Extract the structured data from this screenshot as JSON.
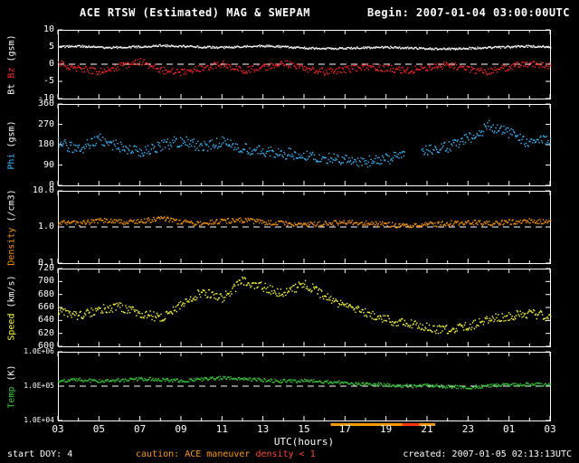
{
  "header": {
    "title": "ACE RTSW (Estimated) MAG & SWEPAM",
    "begin": "Begin: 2007-01-04 03:00:00UTC"
  },
  "footer": {
    "start_doy": "start DOY:  4",
    "caution_label": "caution:",
    "caution_maneuver": "ACE maneuver",
    "caution_density": "density < 1",
    "created": "created: 2007-01-05 02:13:13UTC"
  },
  "x_axis": {
    "label": "UTC(hours)",
    "start_hour": 3,
    "end_hour": 27,
    "tick_labels": [
      "03",
      "05",
      "07",
      "09",
      "11",
      "13",
      "15",
      "17",
      "19",
      "21",
      "23",
      "01",
      "03"
    ],
    "anchor_hours": [
      3,
      4,
      5,
      6,
      7,
      8,
      9,
      10,
      11,
      12,
      13,
      14,
      15,
      16,
      17,
      18,
      19,
      20,
      21,
      22,
      23,
      24,
      25,
      26,
      27
    ]
  },
  "caution_bar": {
    "from_hour": 16.3,
    "to_hour": 21.4,
    "color": "#ff9900",
    "segments": [
      {
        "from_hour": 19.8,
        "to_hour": 20.6,
        "color": "#ff3311"
      }
    ]
  },
  "colors": {
    "background": "#000000",
    "frame": "#ffffff",
    "text": "#ffffff",
    "bt": "#ffffff",
    "bz": "#ff2020",
    "phi": "#33bbff",
    "density": "#ff9900",
    "speed": "#ffff33",
    "temp": "#33cc33",
    "caution": "#ff9900",
    "caution_red": "#ff4433"
  },
  "chart_data": [
    {
      "type": "scatter",
      "name": "bt-bz",
      "ylabel": "Bt Bz (gsm)",
      "scale": "linear",
      "ylim": [
        -10,
        10
      ],
      "dashed_at": 0,
      "yticks": [
        {
          "v": 10,
          "t": "10"
        },
        {
          "v": 5,
          "t": "5"
        },
        {
          "v": 0,
          "t": "0"
        },
        {
          "v": -5,
          "t": "-5"
        },
        {
          "v": -10,
          "t": "-10"
        }
      ],
      "label_parts": [
        {
          "text": "Bt",
          "color": "#ffffff"
        },
        {
          "text": "Bz",
          "color": "#ff2020"
        },
        {
          "text": "(gsm)",
          "color": "#ffffff"
        }
      ],
      "series": [
        {
          "name": "Bt",
          "color": "#ffffff",
          "jitter": 0.3,
          "values": [
            5.2,
            5.4,
            5.1,
            5.0,
            5.3,
            5.6,
            5.4,
            5.2,
            5.0,
            5.3,
            5.5,
            5.2,
            4.9,
            4.7,
            4.8,
            5.0,
            5.1,
            4.9,
            4.7,
            4.6,
            4.8,
            5.0,
            5.2,
            5.4,
            5.2
          ]
        },
        {
          "name": "Bz",
          "color": "#ff2020",
          "jitter": 1.0,
          "values": [
            0.5,
            -1.2,
            -2.0,
            -0.5,
            1.0,
            -1.5,
            -2.2,
            -1.0,
            0.2,
            -1.8,
            -0.8,
            0.5,
            -1.2,
            -2.0,
            -1.4,
            -0.6,
            -1.0,
            -1.8,
            -0.9,
            0.1,
            -1.4,
            -2.0,
            -0.6,
            0.4,
            -0.2
          ]
        }
      ]
    },
    {
      "type": "scatter",
      "name": "phi",
      "ylabel": "Phi (gsm)",
      "scale": "linear",
      "ylim": [
        0,
        360
      ],
      "yticks": [
        {
          "v": 360,
          "t": "360"
        },
        {
          "v": 270,
          "t": "270"
        },
        {
          "v": 180,
          "t": "180"
        },
        {
          "v": 90,
          "t": "90"
        },
        {
          "v": 0,
          "t": "0"
        }
      ],
      "label_parts": [
        {
          "text": "Phi",
          "color": "#33bbff"
        },
        {
          "text": "(gsm)",
          "color": "#ffffff"
        }
      ],
      "series": [
        {
          "name": "Phi",
          "color": "#33bbff",
          "jitter": 25,
          "gaps": [
            [
              19.9,
              20.7
            ]
          ],
          "values": [
            190,
            160,
            210,
            170,
            150,
            180,
            200,
            175,
            195,
            165,
            155,
            145,
            135,
            125,
            115,
            108,
            118,
            135,
            155,
            175,
            210,
            265,
            235,
            185,
            205
          ]
        }
      ]
    },
    {
      "type": "scatter",
      "name": "density",
      "ylabel": "Density (/cm3)",
      "scale": "log",
      "ylim": [
        0.1,
        10
      ],
      "dashed_at": 1,
      "yticks": [
        {
          "v": 10,
          "t": "10.0"
        },
        {
          "v": 1,
          "t": "1.0"
        },
        {
          "v": 0.1,
          "t": "0.1"
        }
      ],
      "label_parts": [
        {
          "text": "Density",
          "color": "#ff9900"
        },
        {
          "text": "(/cm3)",
          "color": "#ffffff"
        }
      ],
      "series": [
        {
          "name": "Density",
          "color": "#ff9900",
          "jitter": 0.07,
          "values": [
            1.4,
            1.3,
            1.6,
            1.4,
            1.5,
            1.8,
            1.4,
            1.3,
            1.5,
            1.6,
            1.4,
            1.3,
            1.2,
            1.3,
            1.4,
            1.3,
            1.2,
            1.1,
            1.2,
            1.3,
            1.4,
            1.3,
            1.4,
            1.5,
            1.4
          ]
        }
      ]
    },
    {
      "type": "scatter",
      "name": "speed",
      "ylabel": "Speed (km/s)",
      "scale": "linear",
      "ylim": [
        600,
        720
      ],
      "yticks": [
        {
          "v": 720,
          "t": "720"
        },
        {
          "v": 700,
          "t": "700"
        },
        {
          "v": 680,
          "t": "680"
        },
        {
          "v": 660,
          "t": "660"
        },
        {
          "v": 640,
          "t": "640"
        },
        {
          "v": 620,
          "t": "620"
        },
        {
          "v": 600,
          "t": "600"
        }
      ],
      "label_parts": [
        {
          "text": "Speed",
          "color": "#ffff33"
        },
        {
          "text": "(km/s)",
          "color": "#ffffff"
        }
      ],
      "series": [
        {
          "name": "Speed",
          "color": "#ffff33",
          "jitter": 7,
          "values": [
            655,
            648,
            658,
            662,
            652,
            645,
            665,
            685,
            675,
            702,
            692,
            682,
            698,
            678,
            662,
            652,
            642,
            636,
            630,
            626,
            632,
            642,
            648,
            652,
            646
          ]
        }
      ]
    },
    {
      "type": "scatter",
      "name": "temp",
      "ylabel": "Temp (K)",
      "scale": "log",
      "ylim": [
        10000,
        1000000
      ],
      "dashed_at": 100000,
      "tick_font": 8,
      "yticks": [
        {
          "v": 1000000,
          "t": "1.0E+06"
        },
        {
          "v": 100000,
          "t": "1.0E+05"
        },
        {
          "v": 10000,
          "t": "1.0E+04"
        }
      ],
      "label_parts": [
        {
          "text": "Temp",
          "color": "#33cc33"
        },
        {
          "text": "(K)",
          "color": "#ffffff"
        }
      ],
      "series": [
        {
          "name": "Temp",
          "color": "#33cc33",
          "jitter": 0.05,
          "values": [
            150000,
            160000,
            145000,
            155000,
            170000,
            160000,
            150000,
            165000,
            180000,
            170000,
            155000,
            145000,
            150000,
            140000,
            130000,
            120000,
            112000,
            105000,
            110000,
            100000,
            95000,
            105000,
            115000,
            120000,
            112000
          ]
        }
      ]
    }
  ]
}
